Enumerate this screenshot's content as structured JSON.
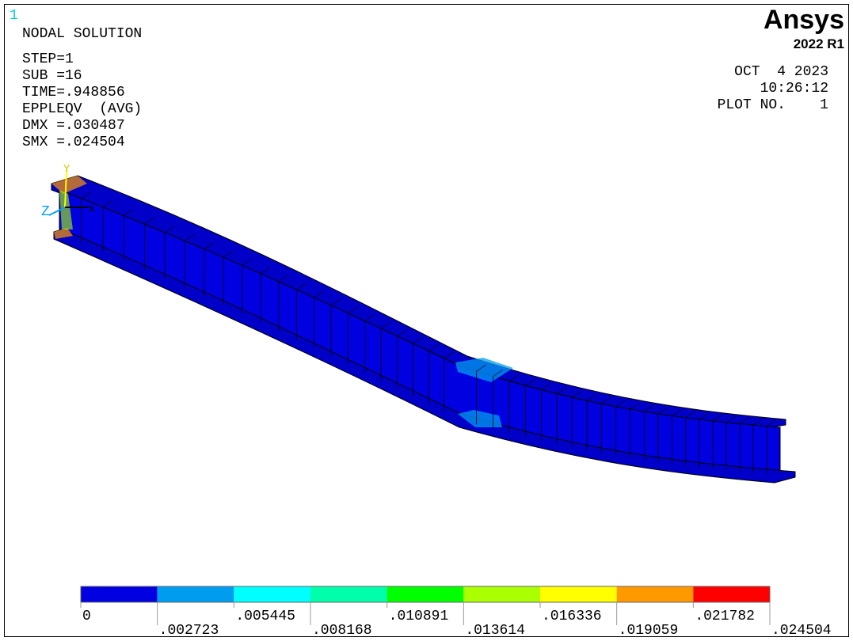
{
  "window_number": "1",
  "info": {
    "title": "NODAL SOLUTION",
    "lines": [
      "STEP=1",
      "SUB =16",
      "TIME=.948856",
      "EPPLEQV  (AVG)",
      "DMX =.030487",
      "SMX =.024504"
    ]
  },
  "logo": {
    "name": "Ansys",
    "version": "2022 R1"
  },
  "stamp": {
    "date": "OCT  4 2023",
    "time": "10:26:12",
    "plot": "PLOT NO.    1"
  },
  "triad": {
    "y": "Y",
    "z": "Z",
    "x": "X"
  },
  "legend": {
    "colors": [
      "#0000e0",
      "#009cf0",
      "#00ffff",
      "#00ffaa",
      "#00ff00",
      "#aaff00",
      "#ffff00",
      "#ff9900",
      "#ff0000"
    ],
    "labels": [
      "0",
      ".002723",
      ".005445",
      ".008168",
      ".010891",
      ".013614",
      ".016336",
      ".019059",
      ".021782",
      ".024504"
    ]
  }
}
